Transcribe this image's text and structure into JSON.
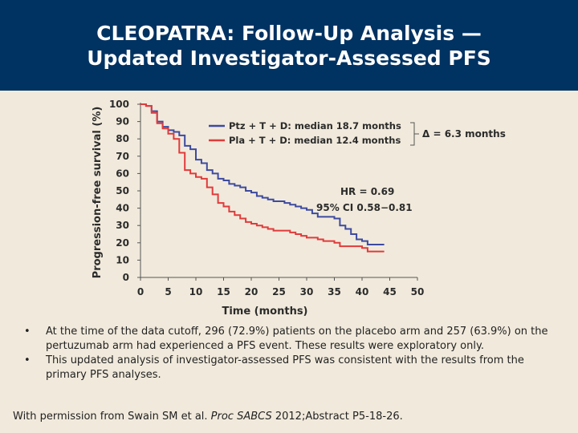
{
  "header": {
    "title_line1": "CLEOPATRA: Follow-Up Analysis —",
    "title_line2": "Updated Investigator-Assessed PFS"
  },
  "chart_data": {
    "type": "line",
    "title": "",
    "xlabel": "Time (months)",
    "ylabel": "Progression-free survival (%)",
    "xlim": [
      0,
      50
    ],
    "ylim": [
      0,
      100
    ],
    "xticks": [
      "0",
      "5",
      "10",
      "15",
      "20",
      "25",
      "30",
      "35",
      "40",
      "45",
      "50"
    ],
    "yticks": [
      "0",
      "10",
      "20",
      "30",
      "40",
      "50",
      "60",
      "70",
      "80",
      "90",
      "100"
    ],
    "series": [
      {
        "name": "Ptz + T + D",
        "legend_label": "Ptz + T + D: median 18.7 months",
        "color": "#3d4aa0",
        "x": [
          0,
          1,
          2,
          3,
          4,
          5,
          6,
          7,
          8,
          9,
          10,
          11,
          12,
          13,
          14,
          15,
          16,
          17,
          18,
          19,
          20,
          21,
          22,
          23,
          24,
          25,
          26,
          27,
          28,
          29,
          30,
          31,
          32,
          33,
          34,
          35,
          36,
          37,
          38,
          39,
          40,
          41,
          42,
          43,
          44
        ],
        "y": [
          100,
          99,
          96,
          90,
          87,
          85,
          84,
          82,
          76,
          74,
          68,
          66,
          62,
          60,
          57,
          56,
          54,
          53,
          52,
          50,
          49,
          47,
          46,
          45,
          44,
          44,
          43,
          42,
          41,
          40,
          39,
          37,
          35,
          35,
          35,
          34,
          30,
          28,
          25,
          22,
          21,
          19,
          19,
          19,
          19
        ]
      },
      {
        "name": "Pla + T + D",
        "legend_label": "Pla + T + D: median 12.4 months",
        "color": "#e03b3b",
        "x": [
          0,
          1,
          2,
          3,
          4,
          5,
          6,
          7,
          8,
          9,
          10,
          11,
          12,
          13,
          14,
          15,
          16,
          17,
          18,
          19,
          20,
          21,
          22,
          23,
          24,
          25,
          26,
          27,
          28,
          29,
          30,
          31,
          32,
          33,
          34,
          35,
          36,
          37,
          38,
          39,
          40,
          41,
          42,
          43,
          44
        ],
        "y": [
          100,
          99,
          95,
          89,
          86,
          83,
          80,
          72,
          62,
          60,
          58,
          57,
          52,
          48,
          43,
          41,
          38,
          36,
          34,
          32,
          31,
          30,
          29,
          28,
          27,
          27,
          27,
          26,
          25,
          24,
          23,
          23,
          22,
          21,
          21,
          20,
          18,
          18,
          18,
          18,
          17,
          15,
          15,
          15,
          15
        ]
      }
    ],
    "annotations": {
      "delta": "Δ = 6.3 months",
      "hr": "HR = 0.69",
      "ci": "95% CI 0.58−0.81"
    }
  },
  "bullets": [
    "At the time of the data cutoff, 296 (72.9%) patients on the placebo arm and 257 (63.9%) on the pertuzumab arm had experienced a PFS event. These results were exploratory only.",
    "This updated analysis of investigator-assessed PFS was consistent with the results from the primary PFS analyses."
  ],
  "source": {
    "prefix": "With permission from Swain SM et al. ",
    "journal": "Proc SABCS",
    "suffix": " 2012;Abstract P5-18-26."
  }
}
